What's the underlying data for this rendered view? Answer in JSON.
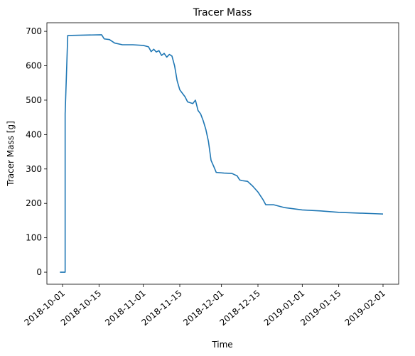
{
  "chart_data": {
    "type": "line",
    "title": "Tracer Mass",
    "xlabel": "Time",
    "ylabel": "Tracer Mass [g]",
    "x_is_date": true,
    "xlim": [
      "2018-09-25",
      "2019-02-07"
    ],
    "ylim": [
      -35,
      725
    ],
    "grid": false,
    "xticks": [
      "2018-10-01",
      "2018-10-15",
      "2018-11-01",
      "2018-11-15",
      "2018-12-01",
      "2018-12-15",
      "2019-01-01",
      "2019-01-15",
      "2019-02-01"
    ],
    "yticks": [
      0,
      100,
      200,
      300,
      400,
      500,
      600,
      700
    ],
    "series": [
      {
        "color": "#1f77b4",
        "points": [
          [
            "2018-09-30",
            0
          ],
          [
            "2018-10-02",
            0
          ],
          [
            "2018-10-02",
            230
          ],
          [
            "2018-10-02",
            460
          ],
          [
            "2018-10-03",
            688
          ],
          [
            "2018-10-09",
            689
          ],
          [
            "2018-10-16",
            690
          ],
          [
            "2018-10-17",
            678
          ],
          [
            "2018-10-19",
            676
          ],
          [
            "2018-10-21",
            666
          ],
          [
            "2018-10-24",
            661
          ],
          [
            "2018-10-28",
            661
          ],
          [
            "2018-11-01",
            659
          ],
          [
            "2018-11-03",
            655
          ],
          [
            "2018-11-04",
            641
          ],
          [
            "2018-11-05",
            648
          ],
          [
            "2018-11-06",
            640
          ],
          [
            "2018-11-07",
            644
          ],
          [
            "2018-11-08",
            630
          ],
          [
            "2018-11-09",
            636
          ],
          [
            "2018-11-10",
            625
          ],
          [
            "2018-11-11",
            633
          ],
          [
            "2018-11-12",
            628
          ],
          [
            "2018-11-13",
            600
          ],
          [
            "2018-11-14",
            556
          ],
          [
            "2018-11-15",
            530
          ],
          [
            "2018-11-17",
            510
          ],
          [
            "2018-11-18",
            495
          ],
          [
            "2018-11-20",
            490
          ],
          [
            "2018-11-21",
            500
          ],
          [
            "2018-11-22",
            470
          ],
          [
            "2018-11-23",
            460
          ],
          [
            "2018-11-24",
            440
          ],
          [
            "2018-11-25",
            415
          ],
          [
            "2018-11-26",
            380
          ],
          [
            "2018-11-27",
            325
          ],
          [
            "2018-11-28",
            308
          ],
          [
            "2018-11-29",
            290
          ],
          [
            "2018-12-02",
            288
          ],
          [
            "2018-12-05",
            287
          ],
          [
            "2018-12-07",
            280
          ],
          [
            "2018-12-08",
            268
          ],
          [
            "2018-12-09",
            266
          ],
          [
            "2018-12-11",
            264
          ],
          [
            "2018-12-13",
            250
          ],
          [
            "2018-12-15",
            233
          ],
          [
            "2018-12-17",
            210
          ],
          [
            "2018-12-18",
            196
          ],
          [
            "2018-12-21",
            196
          ],
          [
            "2018-12-25",
            188
          ],
          [
            "2019-01-01",
            181
          ],
          [
            "2019-01-08",
            178
          ],
          [
            "2019-01-15",
            174
          ],
          [
            "2019-01-22",
            172
          ],
          [
            "2019-01-29",
            170
          ],
          [
            "2019-02-01",
            169
          ]
        ]
      }
    ]
  }
}
